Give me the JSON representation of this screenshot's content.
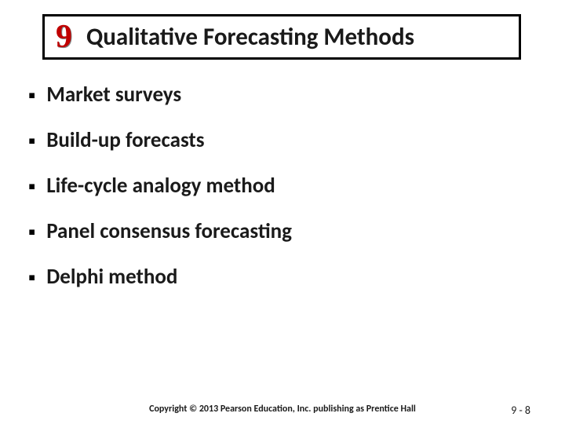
{
  "title": {
    "chapter_number": "9",
    "text": "Qualitative Forecasting Methods",
    "chapter_color": "#c00000",
    "chapter_shadow": "#808080",
    "border_color": "#000000",
    "text_color": "#1a1a1a",
    "title_fontsize": 31,
    "chapter_fontsize": 42
  },
  "bullets": {
    "marker": "▪",
    "marker_color": "#000000",
    "text_color": "#1a1a1a",
    "fontsize": 27,
    "fontweight": 700,
    "items": [
      "Market surveys",
      "Build-up forecasts",
      "Life-cycle analogy method",
      "Panel consensus forecasting",
      "Delphi method"
    ]
  },
  "footer": {
    "copyright": "Copyright © 2013 Pearson Education, Inc. publishing as Prentice Hall",
    "page_number": "9 - 8",
    "copyright_fontsize": 12,
    "page_fontsize": 14,
    "text_color": "#1a1a1a"
  },
  "background_color": "#ffffff"
}
